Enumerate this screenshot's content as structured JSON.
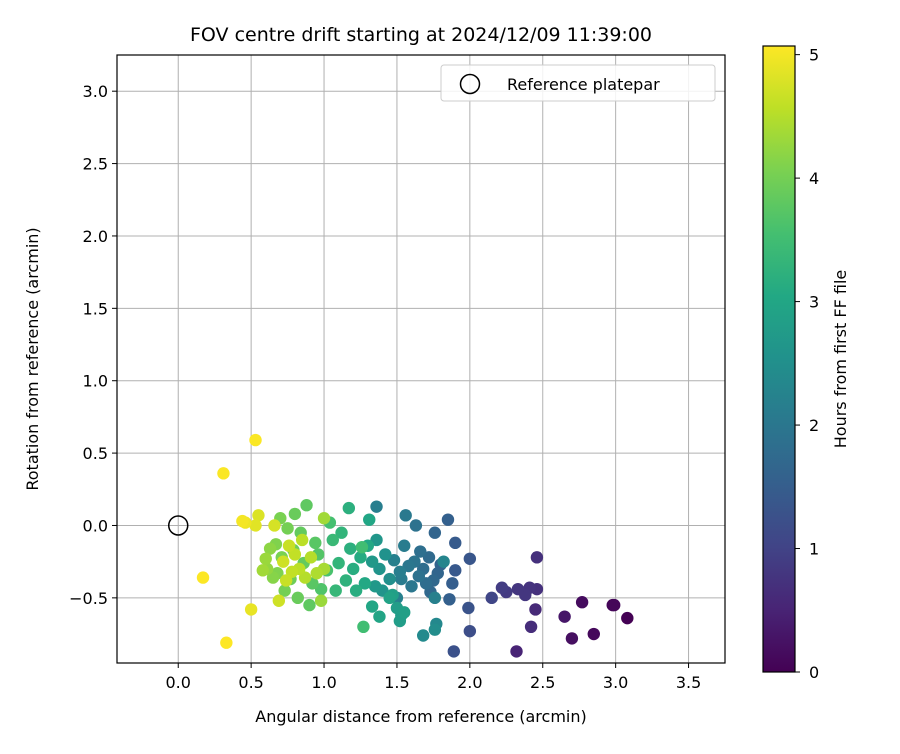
{
  "chart_data": {
    "type": "scatter",
    "title": "FOV centre drift starting at 2024/12/09 11:39:00",
    "xlabel": "Angular distance from reference (arcmin)",
    "ylabel": "Rotation from reference (arcmin)",
    "xlim": [
      -0.42,
      3.75
    ],
    "ylim": [
      -0.95,
      3.25
    ],
    "x_ticks": [
      0.0,
      0.5,
      1.0,
      1.5,
      2.0,
      2.5,
      3.0,
      3.5
    ],
    "x_tick_labels": [
      "0.0",
      "0.5",
      "1.0",
      "1.5",
      "2.0",
      "2.5",
      "3.0",
      "3.5"
    ],
    "y_ticks": [
      -0.5,
      0.0,
      0.5,
      1.0,
      1.5,
      2.0,
      2.5,
      3.0
    ],
    "y_tick_labels": [
      "−0.5",
      "0.0",
      "0.5",
      "1.0",
      "1.5",
      "2.0",
      "2.5",
      "3.0"
    ],
    "grid": true,
    "legend": {
      "position": "top-right",
      "label": "Reference platepar"
    },
    "reference_point": {
      "x": 0.0,
      "y": 0.0
    },
    "colorbar": {
      "label": "Hours from first FF file",
      "colormap": "viridis",
      "range": [
        0,
        5.07
      ],
      "ticks": [
        0,
        1,
        2,
        3,
        4,
        5
      ],
      "tick_labels": [
        "0",
        "1",
        "2",
        "3",
        "4",
        "5"
      ]
    },
    "points": [
      {
        "x": 3.08,
        "y": -0.64,
        "c": 0.0
      },
      {
        "x": 2.98,
        "y": -0.55,
        "c": 0.05
      },
      {
        "x": 2.99,
        "y": -0.55,
        "c": 0.08
      },
      {
        "x": 2.85,
        "y": -0.75,
        "c": 0.1
      },
      {
        "x": 2.77,
        "y": -0.53,
        "c": 0.15
      },
      {
        "x": 2.7,
        "y": -0.78,
        "c": 0.2
      },
      {
        "x": 2.65,
        "y": -0.63,
        "c": 0.3
      },
      {
        "x": 2.32,
        "y": -0.87,
        "c": 0.5
      },
      {
        "x": 2.45,
        "y": -0.58,
        "c": 0.6
      },
      {
        "x": 2.42,
        "y": -0.7,
        "c": 0.65
      },
      {
        "x": 2.46,
        "y": -0.44,
        "c": 0.7
      },
      {
        "x": 2.46,
        "y": -0.22,
        "c": 0.7
      },
      {
        "x": 2.41,
        "y": -0.43,
        "c": 0.75
      },
      {
        "x": 2.38,
        "y": -0.48,
        "c": 0.8
      },
      {
        "x": 2.33,
        "y": -0.44,
        "c": 0.8
      },
      {
        "x": 2.25,
        "y": -0.46,
        "c": 0.85
      },
      {
        "x": 2.22,
        "y": -0.43,
        "c": 0.9
      },
      {
        "x": 2.15,
        "y": -0.5,
        "c": 1.05
      },
      {
        "x": 2.0,
        "y": -0.73,
        "c": 1.2
      },
      {
        "x": 1.89,
        "y": -0.87,
        "c": 1.25
      },
      {
        "x": 1.99,
        "y": -0.57,
        "c": 1.3
      },
      {
        "x": 2.0,
        "y": -0.23,
        "c": 1.35
      },
      {
        "x": 1.9,
        "y": -0.31,
        "c": 1.4
      },
      {
        "x": 1.9,
        "y": -0.12,
        "c": 1.45
      },
      {
        "x": 1.88,
        "y": -0.4,
        "c": 1.5
      },
      {
        "x": 1.85,
        "y": 0.04,
        "c": 1.55
      },
      {
        "x": 1.86,
        "y": -0.51,
        "c": 1.55
      },
      {
        "x": 1.8,
        "y": -0.27,
        "c": 1.6
      },
      {
        "x": 1.78,
        "y": -0.33,
        "c": 1.65
      },
      {
        "x": 1.76,
        "y": -0.05,
        "c": 1.65
      },
      {
        "x": 1.75,
        "y": -0.38,
        "c": 1.7
      },
      {
        "x": 1.73,
        "y": -0.46,
        "c": 1.7
      },
      {
        "x": 1.72,
        "y": -0.22,
        "c": 1.75
      },
      {
        "x": 1.7,
        "y": -0.4,
        "c": 1.8
      },
      {
        "x": 1.68,
        "y": -0.3,
        "c": 1.8
      },
      {
        "x": 1.66,
        "y": -0.18,
        "c": 1.85
      },
      {
        "x": 1.65,
        "y": -0.35,
        "c": 1.9
      },
      {
        "x": 1.63,
        "y": 0.0,
        "c": 1.9
      },
      {
        "x": 1.62,
        "y": -0.25,
        "c": 1.95
      },
      {
        "x": 1.6,
        "y": -0.42,
        "c": 2.0
      },
      {
        "x": 1.58,
        "y": -0.28,
        "c": 2.0
      },
      {
        "x": 1.56,
        "y": 0.07,
        "c": 2.05
      },
      {
        "x": 1.55,
        "y": -0.14,
        "c": 2.1
      },
      {
        "x": 1.53,
        "y": -0.37,
        "c": 2.1
      },
      {
        "x": 1.52,
        "y": -0.32,
        "c": 2.15
      },
      {
        "x": 1.5,
        "y": -0.5,
        "c": 2.2
      },
      {
        "x": 1.48,
        "y": -0.24,
        "c": 2.2
      },
      {
        "x": 1.36,
        "y": 0.13,
        "c": 2.15
      },
      {
        "x": 1.76,
        "y": -0.5,
        "c": 2.2
      },
      {
        "x": 1.82,
        "y": -0.25,
        "c": 2.3
      },
      {
        "x": 1.77,
        "y": -0.68,
        "c": 2.35
      },
      {
        "x": 1.68,
        "y": -0.76,
        "c": 2.4
      },
      {
        "x": 1.76,
        "y": -0.72,
        "c": 2.45
      },
      {
        "x": 1.45,
        "y": -0.37,
        "c": 2.5
      },
      {
        "x": 1.42,
        "y": -0.2,
        "c": 2.55
      },
      {
        "x": 1.4,
        "y": -0.45,
        "c": 2.6
      },
      {
        "x": 1.38,
        "y": -0.3,
        "c": 2.6
      },
      {
        "x": 1.36,
        "y": -0.1,
        "c": 2.65
      },
      {
        "x": 1.35,
        "y": -0.42,
        "c": 2.7
      },
      {
        "x": 1.33,
        "y": -0.25,
        "c": 2.7
      },
      {
        "x": 1.53,
        "y": -0.62,
        "c": 2.75
      },
      {
        "x": 1.52,
        "y": -0.66,
        "c": 2.8
      },
      {
        "x": 1.5,
        "y": -0.57,
        "c": 2.8
      },
      {
        "x": 1.55,
        "y": -0.6,
        "c": 2.85
      },
      {
        "x": 1.47,
        "y": -0.48,
        "c": 2.85
      },
      {
        "x": 1.45,
        "y": -0.5,
        "c": 2.9
      },
      {
        "x": 1.38,
        "y": -0.63,
        "c": 2.95
      },
      {
        "x": 1.33,
        "y": -0.56,
        "c": 3.0
      },
      {
        "x": 1.31,
        "y": 0.04,
        "c": 3.0
      },
      {
        "x": 1.3,
        "y": -0.14,
        "c": 3.05
      },
      {
        "x": 1.28,
        "y": -0.4,
        "c": 3.05
      },
      {
        "x": 1.25,
        "y": -0.22,
        "c": 3.1
      },
      {
        "x": 1.22,
        "y": -0.45,
        "c": 3.15
      },
      {
        "x": 1.2,
        "y": -0.3,
        "c": 3.15
      },
      {
        "x": 1.18,
        "y": -0.16,
        "c": 3.2
      },
      {
        "x": 1.17,
        "y": 0.12,
        "c": 3.2
      },
      {
        "x": 1.15,
        "y": -0.38,
        "c": 3.25
      },
      {
        "x": 1.12,
        "y": -0.05,
        "c": 3.3
      },
      {
        "x": 1.1,
        "y": -0.26,
        "c": 3.3
      },
      {
        "x": 1.08,
        "y": -0.45,
        "c": 3.35
      },
      {
        "x": 1.06,
        "y": -0.1,
        "c": 3.4
      },
      {
        "x": 1.27,
        "y": -0.7,
        "c": 3.5
      },
      {
        "x": 1.26,
        "y": -0.15,
        "c": 3.5
      },
      {
        "x": 1.04,
        "y": 0.02,
        "c": 3.55
      },
      {
        "x": 1.02,
        "y": -0.31,
        "c": 3.6
      },
      {
        "x": 0.98,
        "y": -0.44,
        "c": 3.65
      },
      {
        "x": 0.96,
        "y": -0.2,
        "c": 3.7
      },
      {
        "x": 0.94,
        "y": -0.12,
        "c": 3.75
      },
      {
        "x": 0.92,
        "y": -0.4,
        "c": 3.75
      },
      {
        "x": 0.9,
        "y": -0.55,
        "c": 3.8
      },
      {
        "x": 0.88,
        "y": 0.14,
        "c": 3.8
      },
      {
        "x": 0.86,
        "y": -0.26,
        "c": 3.85
      },
      {
        "x": 0.84,
        "y": -0.05,
        "c": 3.85
      },
      {
        "x": 0.82,
        "y": -0.5,
        "c": 3.9
      },
      {
        "x": 0.8,
        "y": 0.08,
        "c": 3.9
      },
      {
        "x": 0.79,
        "y": -0.17,
        "c": 3.95
      },
      {
        "x": 0.77,
        "y": -0.37,
        "c": 3.95
      },
      {
        "x": 0.75,
        "y": -0.02,
        "c": 4.0
      },
      {
        "x": 0.73,
        "y": -0.45,
        "c": 4.0
      },
      {
        "x": 0.71,
        "y": -0.22,
        "c": 4.05
      },
      {
        "x": 0.7,
        "y": 0.05,
        "c": 4.05
      },
      {
        "x": 0.68,
        "y": -0.33,
        "c": 4.1
      },
      {
        "x": 0.67,
        "y": -0.13,
        "c": 4.1
      },
      {
        "x": 0.65,
        "y": -0.36,
        "c": 4.15
      },
      {
        "x": 0.63,
        "y": -0.16,
        "c": 4.2
      },
      {
        "x": 0.61,
        "y": -0.3,
        "c": 4.25
      },
      {
        "x": 0.6,
        "y": -0.23,
        "c": 4.3
      },
      {
        "x": 0.58,
        "y": -0.31,
        "c": 4.35
      },
      {
        "x": 0.98,
        "y": -0.52,
        "c": 4.3
      },
      {
        "x": 1.0,
        "y": 0.05,
        "c": 4.35
      },
      {
        "x": 1.0,
        "y": -0.3,
        "c": 4.4
      },
      {
        "x": 0.95,
        "y": -0.33,
        "c": 4.45
      },
      {
        "x": 0.91,
        "y": -0.22,
        "c": 4.5
      },
      {
        "x": 0.87,
        "y": -0.36,
        "c": 4.5
      },
      {
        "x": 0.85,
        "y": -0.1,
        "c": 4.55
      },
      {
        "x": 0.83,
        "y": -0.3,
        "c": 4.55
      },
      {
        "x": 0.8,
        "y": -0.2,
        "c": 4.6
      },
      {
        "x": 0.78,
        "y": -0.32,
        "c": 4.6
      },
      {
        "x": 0.76,
        "y": -0.14,
        "c": 4.65
      },
      {
        "x": 0.74,
        "y": -0.38,
        "c": 4.65
      },
      {
        "x": 0.72,
        "y": -0.25,
        "c": 4.7
      },
      {
        "x": 0.69,
        "y": -0.52,
        "c": 4.7
      },
      {
        "x": 0.66,
        "y": 0.0,
        "c": 4.75
      },
      {
        "x": 0.55,
        "y": 0.07,
        "c": 4.8
      },
      {
        "x": 0.53,
        "y": 0.0,
        "c": 4.85
      },
      {
        "x": 0.5,
        "y": -0.58,
        "c": 4.9
      },
      {
        "x": 0.46,
        "y": 0.02,
        "c": 4.95
      },
      {
        "x": 0.44,
        "y": 0.03,
        "c": 5.0
      },
      {
        "x": 0.53,
        "y": 0.59,
        "c": 5.05
      },
      {
        "x": 0.31,
        "y": 0.36,
        "c": 5.05
      },
      {
        "x": 0.17,
        "y": -0.36,
        "c": 5.06
      },
      {
        "x": 0.33,
        "y": -0.81,
        "c": 5.07
      }
    ]
  }
}
